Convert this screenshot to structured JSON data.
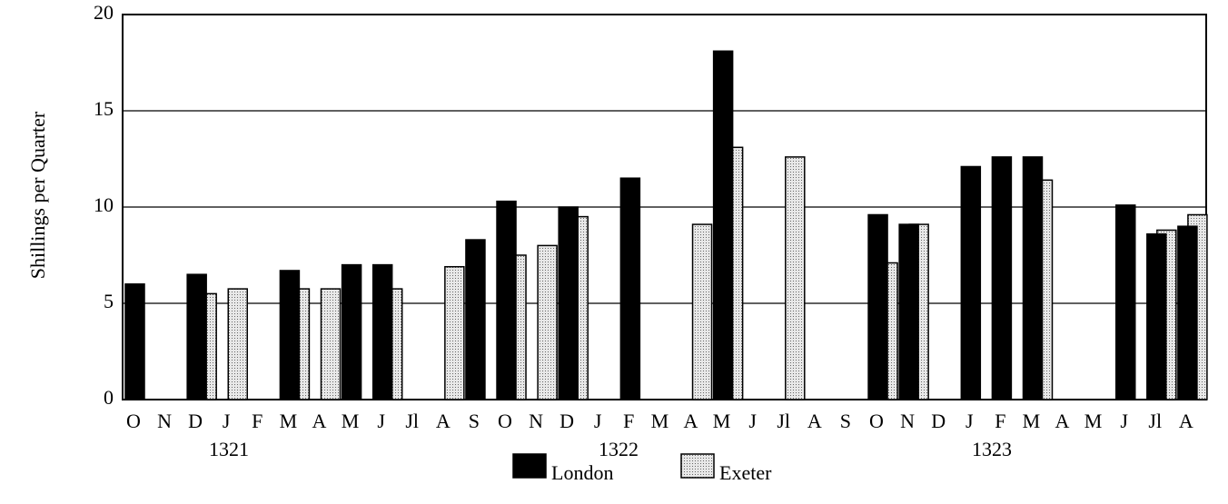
{
  "chart_data": {
    "type": "bar",
    "y_label": "Shillings per Quarter",
    "categories": [
      "O",
      "N",
      "D",
      "J",
      "F",
      "M",
      "A",
      "M",
      "J",
      "Jl",
      "A",
      "S",
      "O",
      "N",
      "D",
      "J",
      "F",
      "M",
      "A",
      "M",
      "J",
      "Jl",
      "A",
      "S",
      "O",
      "N",
      "D",
      "J",
      "F",
      "M",
      "A",
      "M",
      "J",
      "Jl",
      "A"
    ],
    "year_labels": [
      "1321",
      "1322",
      "1323"
    ],
    "series": [
      {
        "name": "London",
        "color": "#000000",
        "values": [
          6,
          null,
          6.5,
          null,
          null,
          6.7,
          null,
          7,
          7,
          null,
          null,
          8.3,
          10.3,
          null,
          10,
          null,
          11.5,
          null,
          null,
          18.1,
          null,
          null,
          null,
          null,
          9.6,
          9.1,
          null,
          12.1,
          12.6,
          12.6,
          null,
          null,
          10.1,
          8.6,
          9
        ]
      },
      {
        "name": "Exeter",
        "color": "#d4d4d4",
        "values": [
          null,
          null,
          5.5,
          5.75,
          null,
          5.75,
          5.75,
          null,
          5.75,
          null,
          6.9,
          null,
          7.5,
          8,
          9.5,
          null,
          null,
          null,
          9.1,
          13.1,
          null,
          12.6,
          null,
          null,
          7.1,
          9.1,
          null,
          null,
          null,
          11.4,
          null,
          null,
          null,
          8.8,
          9.6
        ]
      }
    ],
    "ylim": [
      0,
      20
    ],
    "yticks": [
      0,
      5,
      10,
      15,
      20
    ],
    "grid": true
  }
}
